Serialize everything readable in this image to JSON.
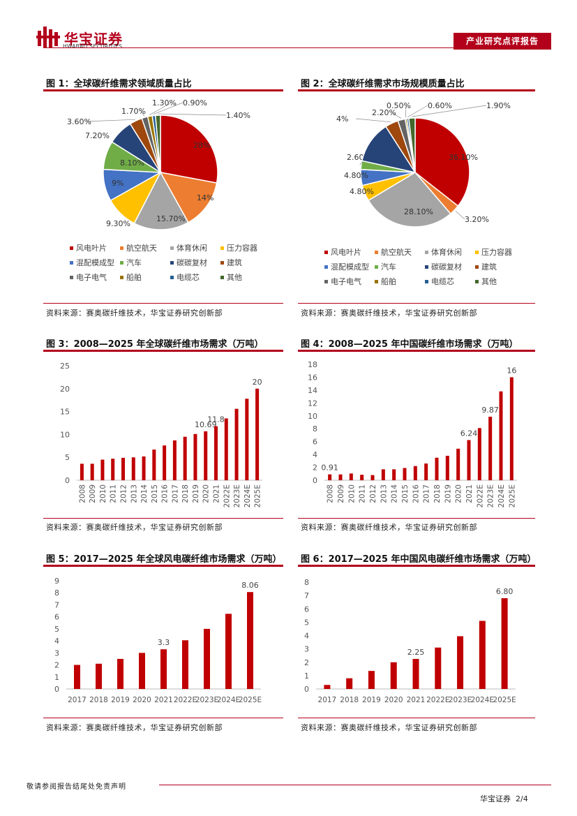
{
  "header": {
    "logo_main": "华宝证券",
    "logo_sub": "HWABAO SECURITIES",
    "report_tag": "产业研究点评报告"
  },
  "footer": {
    "disclaimer": "敬请参阅报告结尾处免责声明",
    "company": "华宝证券",
    "page": "2/4"
  },
  "source_text": "资料来源：赛奥碳纤维技术，华宝证券研究创新部",
  "colors": {
    "brand_red": "#b3001b",
    "bar_red": "#c00000"
  },
  "chart_data": [
    {
      "id": "fig1",
      "type": "pie",
      "title": "图 1：全球碳纤维需求领域质量占比",
      "categories": [
        "风电叶片",
        "航空航天",
        "体育休闲",
        "压力容器",
        "混配模成型",
        "汽车",
        "碳碳复材",
        "建筑",
        "电子电气",
        "船舶",
        "电缆芯",
        "其他"
      ],
      "values": [
        28,
        14,
        15.7,
        9.3,
        9,
        8.1,
        7.2,
        3.6,
        1.7,
        1.3,
        0.9,
        1.4
      ],
      "labels": [
        "28%",
        "14%",
        "15.70%",
        "9.30%",
        "9%",
        "8.10%",
        "7.20%",
        "3.60%",
        "1.70%",
        "1.30%",
        "0.90%",
        "1.40%"
      ],
      "colors": [
        "#c00000",
        "#ed7d31",
        "#a5a5a5",
        "#ffc000",
        "#4472c4",
        "#70ad47",
        "#264478",
        "#9e480e",
        "#636363",
        "#997300",
        "#255e91",
        "#43682b"
      ],
      "legend_position": "bottom"
    },
    {
      "id": "fig2",
      "type": "pie",
      "title": "图 2：全球碳纤维需求市场规模质量占比",
      "categories": [
        "风电叶片",
        "航空航天",
        "体育休闲",
        "压力容器",
        "混配模成型",
        "汽车",
        "碳碳复材",
        "建筑",
        "电子电气",
        "船舶",
        "电缆芯",
        "其他"
      ],
      "values": [
        36.1,
        3.2,
        28.1,
        4.8,
        4.8,
        2.6,
        12.7,
        4,
        2.2,
        0.5,
        0.6,
        1.9
      ],
      "labels": [
        "36.10%",
        "3.20%",
        "28.10%",
        "4.80%",
        "4.80%",
        "2.60%",
        "",
        "4%",
        "2.20%",
        "0.50%",
        "0.60%",
        "1.90%"
      ],
      "colors": [
        "#c00000",
        "#ed7d31",
        "#a5a5a5",
        "#ffc000",
        "#4472c4",
        "#70ad47",
        "#264478",
        "#9e480e",
        "#636363",
        "#997300",
        "#255e91",
        "#43682b"
      ],
      "legend_position": "bottom"
    },
    {
      "id": "fig3",
      "type": "bar",
      "title": "图 3：2008—2025 年全球碳纤维市场需求（万吨）",
      "categories": [
        "2008",
        "2009",
        "2010",
        "2011",
        "2012",
        "2013",
        "2014",
        "2015",
        "2016",
        "2017",
        "2018",
        "2019",
        "2020",
        "2021",
        "2022E",
        "2023E",
        "2024E",
        "2025E"
      ],
      "values": [
        3.6,
        3.6,
        4.5,
        4.7,
        4.9,
        5,
        5.2,
        6.7,
        7.6,
        8.7,
        9.5,
        10.1,
        10.69,
        11.8,
        13.5,
        15.6,
        17.8,
        20
      ],
      "data_labels": {
        "12": "10.69",
        "13": "11.8",
        "17": "20"
      },
      "ylim": [
        0,
        25
      ],
      "yticks": [
        0,
        5,
        10,
        15,
        20,
        25
      ]
    },
    {
      "id": "fig4",
      "type": "bar",
      "title": "图 4：2008—2025 年中国碳纤维市场需求（万吨）",
      "categories": [
        "2008",
        "2009",
        "2010",
        "2011",
        "2012",
        "2013",
        "2014",
        "2015",
        "2016",
        "2017",
        "2018",
        "2019",
        "2020",
        "2021",
        "2022E",
        "2023E",
        "2024E",
        "2025E"
      ],
      "values": [
        0.91,
        0.9,
        1.05,
        0.85,
        0.8,
        1.7,
        1.7,
        1.9,
        2.2,
        2.6,
        3.5,
        3.8,
        4.9,
        6.24,
        8.1,
        9.87,
        13.8,
        16
      ],
      "data_labels": {
        "0": "0.91",
        "13": "6.24",
        "15": "9.87",
        "17": "16"
      },
      "ylim": [
        0,
        18
      ],
      "yticks": [
        0,
        2,
        4,
        6,
        8,
        10,
        12,
        14,
        16,
        18
      ]
    },
    {
      "id": "fig5",
      "type": "bar",
      "title": "图 5：2017—2025 年全球风电碳纤维市场需求（万吨）",
      "categories": [
        "2017",
        "2018",
        "2019",
        "2020",
        "2021",
        "2022E",
        "2023E",
        "2024E",
        "2025E"
      ],
      "values": [
        2.0,
        2.1,
        2.5,
        3.0,
        3.3,
        4.05,
        5.0,
        6.25,
        8.06
      ],
      "data_labels": {
        "4": "3.3",
        "8": "8.06"
      },
      "ylim": [
        0,
        9
      ],
      "yticks": [
        0,
        1,
        2,
        3,
        4,
        5,
        6,
        7,
        8,
        9
      ]
    },
    {
      "id": "fig6",
      "type": "bar",
      "title": "图 6：2017—2025 年中国风电碳纤维市场需求（万吨）",
      "categories": [
        "2017",
        "2018",
        "2019",
        "2020",
        "2021",
        "2022E",
        "2023E",
        "2024E",
        "2025E"
      ],
      "values": [
        0.3,
        0.8,
        1.35,
        2.0,
        2.25,
        3.1,
        3.95,
        5.1,
        6.8
      ],
      "data_labels": {
        "4": "2.25",
        "8": "6.80"
      },
      "ylim": [
        0,
        8
      ],
      "yticks": [
        0,
        1,
        2,
        3,
        4,
        5,
        6,
        7,
        8
      ]
    }
  ]
}
